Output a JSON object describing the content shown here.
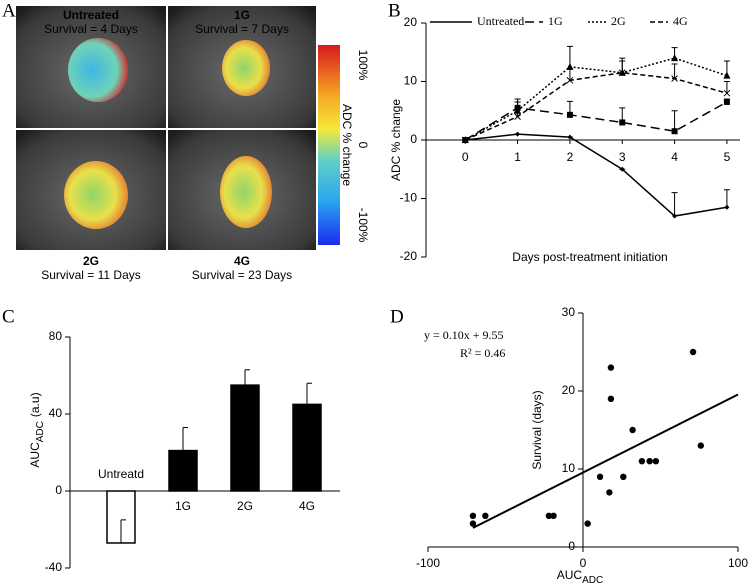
{
  "figure_a": {
    "panel": "A",
    "images": [
      {
        "title": "Untreated",
        "subtitle": "Survival = 4 Days"
      },
      {
        "title": "1G",
        "subtitle": "Survival = 7 Days"
      },
      {
        "title": "2G",
        "subtitle": "Survival = 11 Days"
      },
      {
        "title": "4G",
        "subtitle": "Survival = 23 Days"
      }
    ],
    "colorbar": {
      "label": "ADC % change",
      "lim": [
        -100,
        100
      ],
      "ticks": [
        {
          "value": 100,
          "label": "100%"
        },
        0,
        {
          "value": -100,
          "label": "-100%"
        }
      ]
    }
  },
  "chart_data": [
    {
      "type": "line",
      "panel": "B",
      "xlabel": "Days post-treatment initiation",
      "ylabel": "ADC % change",
      "x": [
        0,
        1,
        2,
        3,
        4,
        5
      ],
      "xlim": [
        -0.75,
        5.25
      ],
      "xticks": [
        0,
        1,
        2,
        3,
        4,
        5
      ],
      "ylim": [
        -20,
        20
      ],
      "yticks": [
        -20,
        -10,
        0,
        10,
        20
      ],
      "legend": "top",
      "series": [
        {
          "name": "Untreated",
          "color": "#000000",
          "dash": "solid",
          "marker": "diamond",
          "values": [
            0,
            1,
            0.5,
            -5,
            -13,
            -11.5
          ],
          "errors": [
            0,
            0,
            0,
            0,
            4,
            3
          ]
        },
        {
          "name": "1G",
          "color": "#000000",
          "dash": "long",
          "marker": "square",
          "values": [
            0,
            5.5,
            4.3,
            3,
            1.5,
            6.5
          ],
          "errors": [
            0,
            1,
            2.3,
            2.5,
            3.5,
            0.5
          ]
        },
        {
          "name": "2G",
          "color": "#000000",
          "dash": "dotted",
          "marker": "triangle",
          "values": [
            0,
            5,
            12.5,
            11.5,
            14,
            11
          ],
          "errors": [
            0,
            2,
            3.5,
            2.5,
            1.8,
            2.5
          ]
        },
        {
          "name": "4G",
          "color": "#000000",
          "dash": "short",
          "marker": "cross",
          "values": [
            0,
            4,
            10.2,
            11.5,
            10.5,
            8
          ],
          "errors": [
            0,
            2.5,
            2,
            2,
            2.5,
            2
          ]
        }
      ]
    },
    {
      "type": "bar",
      "panel": "C",
      "ylabel": "AUC",
      "ylabel_sub": "ADC",
      "ylabel_unit": "(a.u)",
      "categories": [
        "Untreatd",
        "1G",
        "2G",
        "4G"
      ],
      "values": [
        -27,
        21,
        55,
        45
      ],
      "errors": [
        12,
        12,
        8,
        11
      ],
      "colors": [
        "#ffffff",
        "#000000",
        "#000000",
        "#000000"
      ],
      "ylim": [
        -40,
        80
      ],
      "yticks": [
        -40,
        0,
        40,
        80
      ]
    },
    {
      "type": "scatter",
      "panel": "D",
      "xlabel": "AUC",
      "xlabel_sub": "ADC",
      "ylabel": "Survival (days)",
      "x": [
        -71,
        -71,
        -63,
        -22,
        -19,
        3,
        11,
        17,
        18,
        18,
        26,
        32,
        38,
        43,
        47,
        71,
        76
      ],
      "values": [
        4,
        3,
        4,
        4,
        4,
        3,
        9,
        7,
        19,
        23,
        9,
        15,
        11,
        11,
        11,
        25,
        13
      ],
      "color": "#000000",
      "xlim": [
        -100,
        100
      ],
      "xticks": [
        -100,
        0,
        100
      ],
      "ylim": [
        0,
        30
      ],
      "yticks": [
        0,
        10,
        20,
        30
      ],
      "fit": {
        "slope": 0.1,
        "intercept": 9.55,
        "label": "y = 0.10x + 9.55",
        "r2_label": "R² = 0.46"
      }
    }
  ]
}
